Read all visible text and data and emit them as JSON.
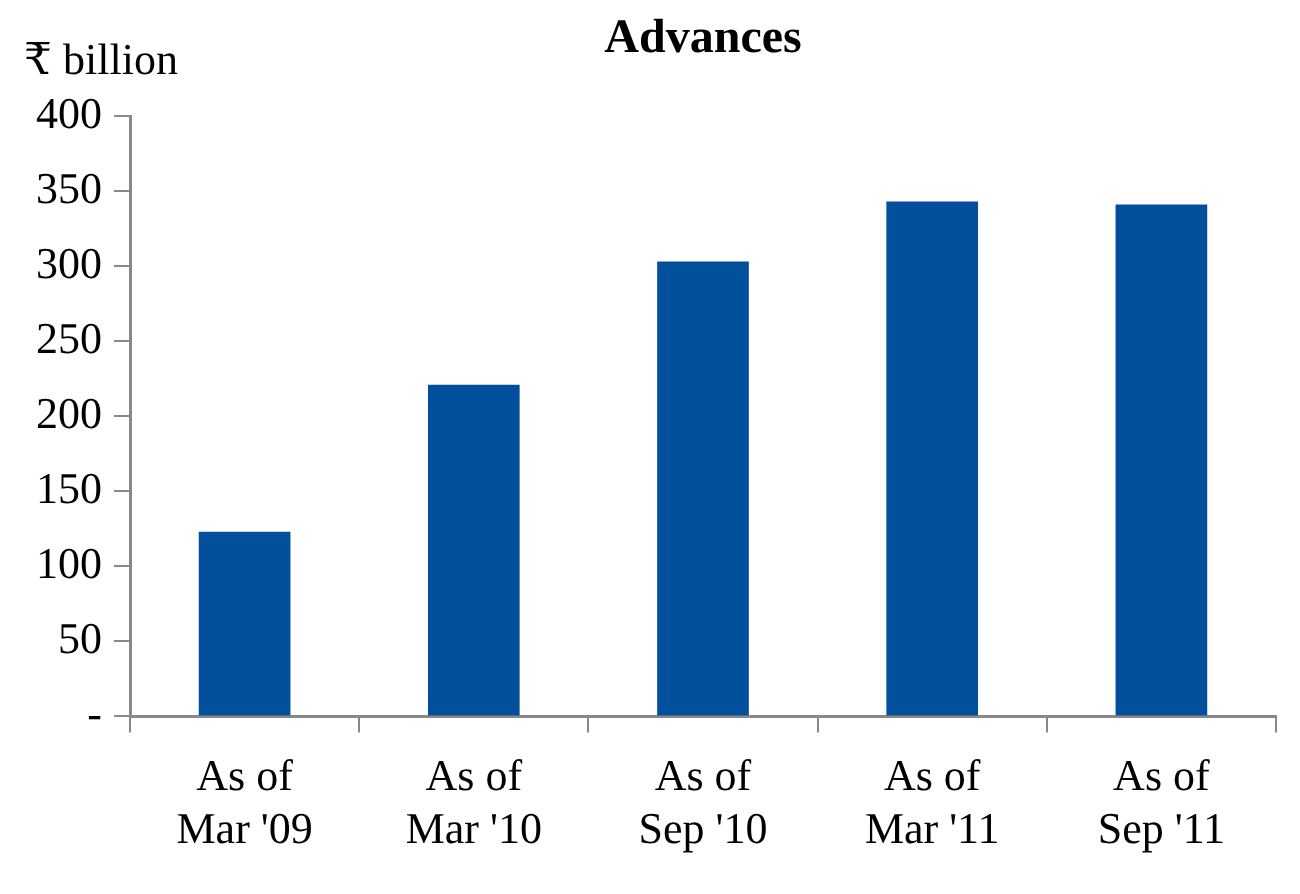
{
  "chart_data": {
    "type": "bar",
    "title": "Advances",
    "ylabel": "₹ billion",
    "categories": [
      "As of Mar '09",
      "As of Mar '10",
      "As of Sep '10",
      "As of Mar '11",
      "As of Sep '11"
    ],
    "values": [
      123,
      221,
      303,
      343,
      341
    ],
    "color": "#02509b",
    "ylim": [
      0,
      400
    ],
    "yticks": [
      {
        "value": 0,
        "label": "-"
      },
      50,
      100,
      150,
      200,
      250,
      300,
      350,
      400
    ],
    "grid": false
  }
}
